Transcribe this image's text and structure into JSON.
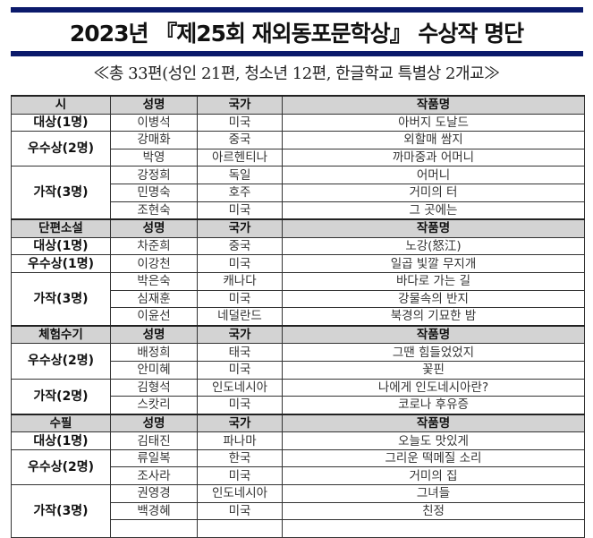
{
  "document": {
    "title": "2023년 『제25회 재외동포문학상』 수상작 명단",
    "subtitle": "≪총 33편(성인 21편, 청소년 12편, 한글학교 특별상 2개교≫",
    "colors": {
      "rule_bar": "#0b1a6b",
      "header_bg": "#d3d3d3"
    },
    "sections": [
      {
        "category": "시",
        "col_name": "성명",
        "col_country": "국가",
        "col_title": "작품명",
        "groups": [
          {
            "award": "대상(1명)",
            "entries": [
              {
                "name": "이병석",
                "country": "미국",
                "work": "아버지 도날드"
              }
            ]
          },
          {
            "award": "우수상(2명)",
            "entries": [
              {
                "name": "강매화",
                "country": "중국",
                "work": "외할매 쌈지"
              },
              {
                "name": "박영",
                "country": "아르헨티나",
                "work": "까마중과 어머니"
              }
            ]
          },
          {
            "award": "가작(3명)",
            "entries": [
              {
                "name": "강정희",
                "country": "독일",
                "work": "어머니"
              },
              {
                "name": "민명숙",
                "country": "호주",
                "work": "거미의 터"
              },
              {
                "name": "조현숙",
                "country": "미국",
                "work": "그 곳에는"
              }
            ]
          }
        ]
      },
      {
        "category": "단편소설",
        "col_name": "성명",
        "col_country": "국가",
        "col_title": "작품명",
        "groups": [
          {
            "award": "대상(1명)",
            "entries": [
              {
                "name": "차준희",
                "country": "중국",
                "work": "노강(怒江)"
              }
            ]
          },
          {
            "award": "우수상(1명)",
            "entries": [
              {
                "name": "이강천",
                "country": "미국",
                "work": "일곱 빛깔 무지개"
              }
            ]
          },
          {
            "award": "가작(3명)",
            "entries": [
              {
                "name": "박은숙",
                "country": "캐나다",
                "work": "바다로 가는 길"
              },
              {
                "name": "심재훈",
                "country": "미국",
                "work": "강물속의 반지"
              },
              {
                "name": "이윤선",
                "country": "네덜란드",
                "work": "북경의 기묘한 밤"
              }
            ]
          }
        ]
      },
      {
        "category": "체험수기",
        "col_name": "성명",
        "col_country": "국가",
        "col_title": "작품명",
        "groups": [
          {
            "award": "우수상(2명)",
            "entries": [
              {
                "name": "배정희",
                "country": "태국",
                "work": "그땐 힘들었었지"
              },
              {
                "name": "안미혜",
                "country": "미국",
                "work": "꽃핀"
              }
            ]
          },
          {
            "award": "가작(2명)",
            "entries": [
              {
                "name": "김형석",
                "country": "인도네시아",
                "work": "나에게 인도네시아란?"
              },
              {
                "name": "스캇리",
                "country": "미국",
                "work": "코로나 후유증"
              }
            ]
          }
        ]
      },
      {
        "category": "수필",
        "col_name": "성명",
        "col_country": "국가",
        "col_title": "작품명",
        "groups": [
          {
            "award": "대상(1명)",
            "entries": [
              {
                "name": "김태진",
                "country": "파나마",
                "work": "오늘도 맛있게"
              }
            ]
          },
          {
            "award": "우수상(2명)",
            "entries": [
              {
                "name": "류일복",
                "country": "한국",
                "work": "그리운 떡메질 소리"
              },
              {
                "name": "조사라",
                "country": "미국",
                "work": "거미의 집"
              }
            ]
          },
          {
            "award": "가작(3명)",
            "entries": [
              {
                "name": "권영경",
                "country": "인도네시아",
                "work": "그녀들"
              },
              {
                "name": "백경혜",
                "country": "미국",
                "work": "친정"
              },
              {
                "name": "",
                "country": "",
                "work": ""
              }
            ]
          }
        ]
      }
    ]
  }
}
